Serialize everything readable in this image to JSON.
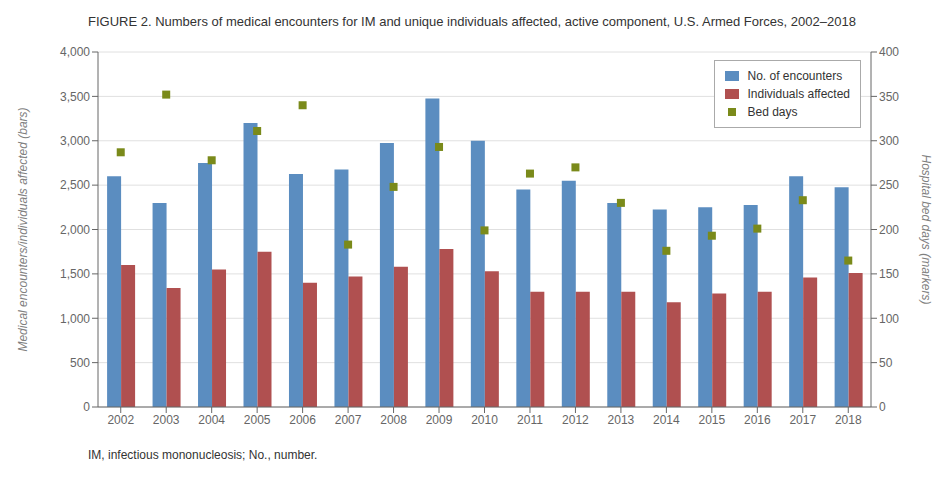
{
  "chart_data": {
    "type": "bar",
    "title": "FIGURE 2. Numbers of medical encounters for IM and unique individuals affected, active component, U.S. Armed Forces, 2002–2018",
    "caption": "IM, infectious mononucleosis; No., number.",
    "categories": [
      2002,
      2003,
      2004,
      2005,
      2006,
      2007,
      2008,
      2009,
      2010,
      2011,
      2012,
      2013,
      2014,
      2015,
      2016,
      2017,
      2018
    ],
    "series": [
      {
        "name": "No. of encounters",
        "type": "bar",
        "color": "#5b8dc0",
        "values": [
          2600,
          2300,
          2750,
          3200,
          2625,
          2675,
          2975,
          3475,
          3000,
          2450,
          2550,
          2300,
          2225,
          2250,
          2275,
          2600,
          2475
        ]
      },
      {
        "name": "Individuals affected",
        "type": "bar",
        "color": "#b05050",
        "values": [
          1600,
          1340,
          1550,
          1750,
          1400,
          1470,
          1580,
          1780,
          1530,
          1300,
          1300,
          1300,
          1180,
          1280,
          1300,
          1460,
          1510
        ]
      },
      {
        "name": "Bed days",
        "type": "scatter",
        "marker": "square",
        "axis": "y2",
        "color": "#7a8a1a",
        "values": [
          287,
          352,
          278,
          311,
          340,
          183,
          248,
          293,
          199,
          263,
          270,
          230,
          176,
          193,
          201,
          233,
          165
        ]
      }
    ],
    "ylabel": "Medical encounters/individuals affected (bars)",
    "y2label": "Hospital bed days (markers)",
    "ylim": [
      0,
      4000
    ],
    "yticks": [
      0,
      500,
      {
        "value": 1000,
        "label": "1,000"
      },
      {
        "value": 1500,
        "label": "1,500"
      },
      {
        "value": 2000,
        "label": "2,000"
      },
      {
        "value": 2500,
        "label": "2,500"
      },
      {
        "value": 3000,
        "label": "3,000"
      },
      {
        "value": 3500,
        "label": "3,500"
      },
      {
        "value": 4000,
        "label": "4,000"
      }
    ],
    "y2lim": [
      0,
      400
    ],
    "y2ticks": [
      0,
      50,
      100,
      150,
      200,
      250,
      300,
      350,
      400
    ],
    "grid": true,
    "legend": "upper right"
  }
}
